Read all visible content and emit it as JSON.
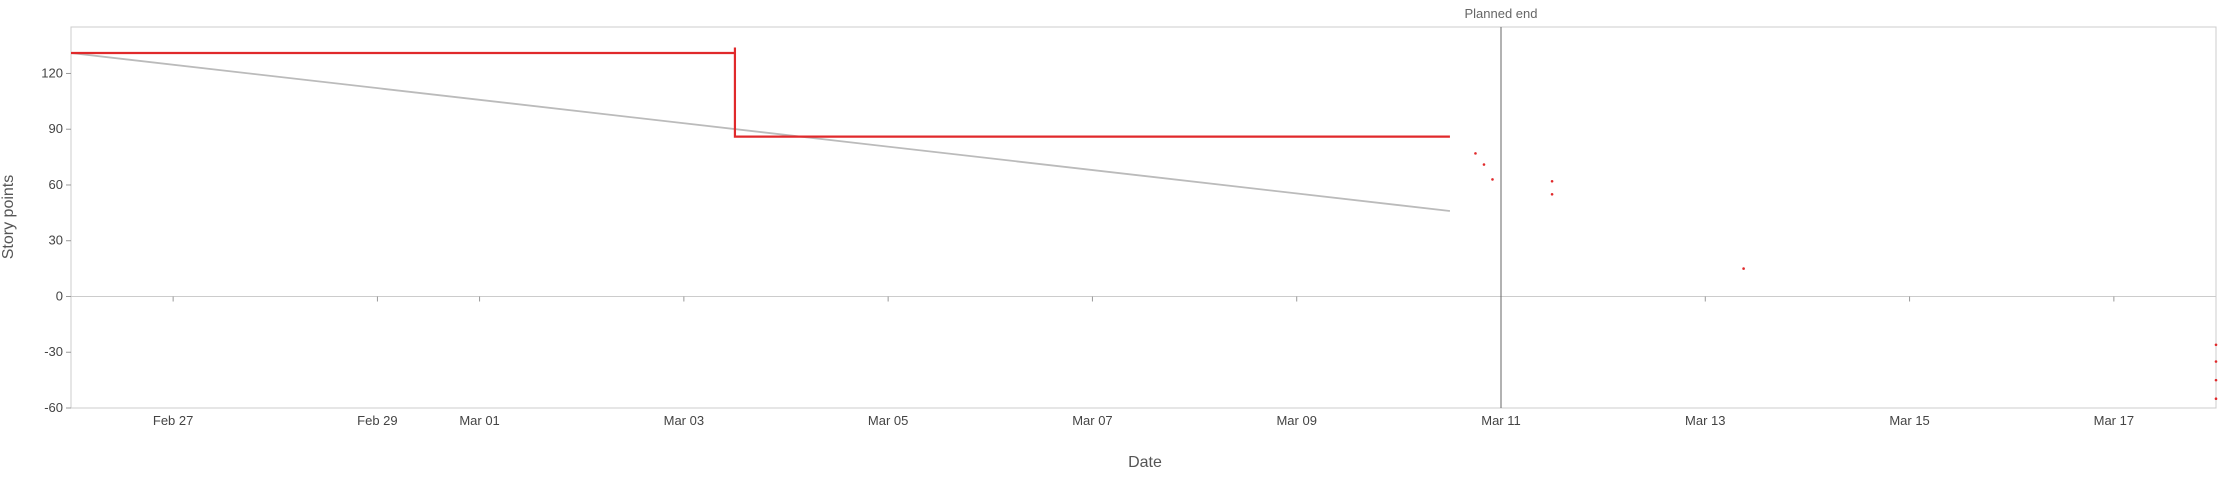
{
  "chart_data": {
    "type": "line",
    "xlabel": "Date",
    "ylabel": "Story points",
    "ylim": [
      -60,
      145
    ],
    "xlim": [
      "2024-02-26",
      "2024-03-18"
    ],
    "grid": false,
    "x_ticks": [
      "Feb 27",
      "Feb 29",
      "Mar 01",
      "Mar 03",
      "Mar 05",
      "Mar 07",
      "Mar 09",
      "Mar 11",
      "Mar 13",
      "Mar 15",
      "Mar 17"
    ],
    "x_tick_dates": [
      "2024-02-27",
      "2024-02-29",
      "2024-03-01",
      "2024-03-03",
      "2024-03-05",
      "2024-03-07",
      "2024-03-09",
      "2024-03-11",
      "2024-03-13",
      "2024-03-15",
      "2024-03-17"
    ],
    "y_ticks": [
      "120",
      "90",
      "60",
      "30",
      "0",
      "-30",
      "-60"
    ],
    "y_tick_values": [
      120,
      90,
      60,
      30,
      0,
      -30,
      -60
    ],
    "annotation": {
      "label": "Planned end",
      "date": "2024-03-11"
    },
    "series": [
      {
        "kind": "ideal",
        "color": "#bbbbbb",
        "points": [
          {
            "x": "2024-02-26",
            "y": 131
          },
          {
            "x": "2024-03-10 12:00",
            "y": 46
          }
        ]
      },
      {
        "kind": "actual",
        "color": "#e0292b",
        "points": [
          {
            "x": "2024-02-26",
            "y": 131
          },
          {
            "x": "2024-03-03 12:00",
            "y": 131
          },
          {
            "x": "2024-03-03 12:00",
            "y": 134
          },
          {
            "x": "2024-03-03 12:00",
            "y": 86
          },
          {
            "x": "2024-03-10 12:00",
            "y": 86
          }
        ]
      },
      {
        "kind": "scatter",
        "color": "#e0292b",
        "points": [
          {
            "x": "2024-03-10 18:00",
            "y": 77
          },
          {
            "x": "2024-03-10 20:00",
            "y": 71
          },
          {
            "x": "2024-03-10 22:00",
            "y": 63
          },
          {
            "x": "2024-03-11 12:00",
            "y": 62
          },
          {
            "x": "2024-03-11 12:00",
            "y": 55
          },
          {
            "x": "2024-03-13 09:00",
            "y": 15
          },
          {
            "x": "2024-03-18",
            "y": -26
          },
          {
            "x": "2024-03-18",
            "y": -35
          },
          {
            "x": "2024-03-18",
            "y": -45
          },
          {
            "x": "2024-03-18",
            "y": -55
          }
        ]
      }
    ]
  }
}
